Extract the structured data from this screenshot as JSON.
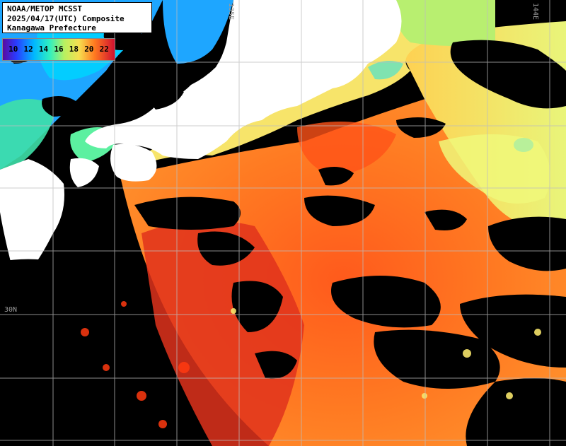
{
  "title": {
    "line1": "NOAA/METOP MCSST",
    "line2": "2025/04/17(UTC) Composite",
    "line3": "Kanagawa Prefecture"
  },
  "legend": {
    "labels": [
      "10",
      "12",
      "14",
      "16",
      "18",
      "20",
      "22"
    ],
    "colors": [
      "#6a0dad",
      "#1e3cff",
      "#00c8ff",
      "#40f080",
      "#f0f060",
      "#ff8020",
      "#c00030"
    ]
  },
  "grid_labels": {
    "lat": "30N",
    "lon1": "135E",
    "lon2": "144E"
  },
  "palette": {
    "land": "#ffffff",
    "cloud": "#000000",
    "grid": "#bdbdbd"
  }
}
